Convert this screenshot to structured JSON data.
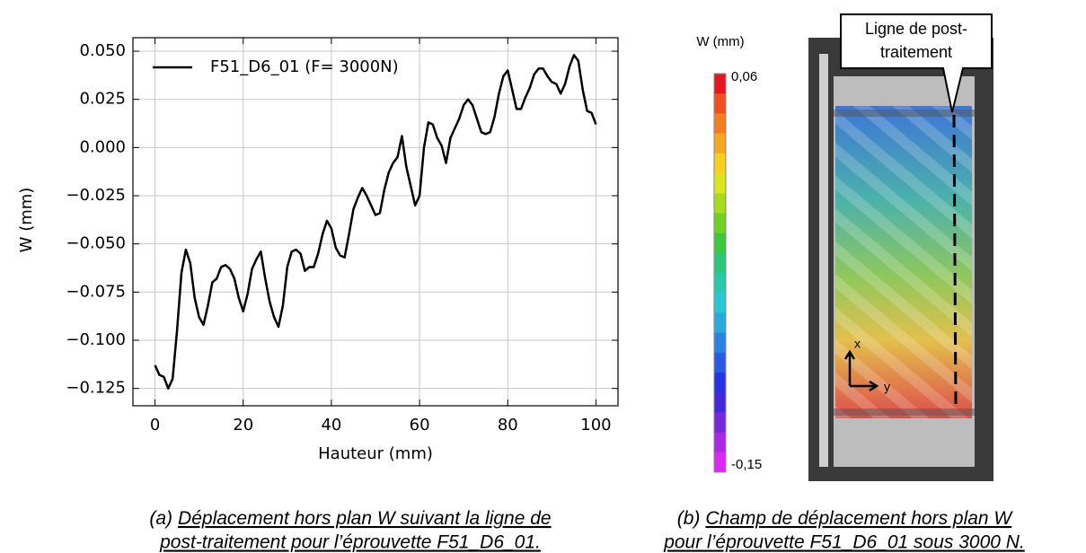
{
  "chart_data": {
    "type": "line",
    "y_label": "W (mm)",
    "x_label": "Hauteur (mm)",
    "x": [
      0,
      1,
      2,
      3,
      4,
      5,
      6,
      7,
      8,
      9,
      10,
      11,
      12,
      13,
      14,
      15,
      16,
      17,
      18,
      19,
      20,
      21,
      22,
      23,
      24,
      25,
      26,
      27,
      28,
      29,
      30,
      31,
      32,
      33,
      34,
      35,
      36,
      37,
      38,
      39,
      40,
      41,
      42,
      43,
      44,
      45,
      46,
      47,
      48,
      49,
      50,
      51,
      52,
      53,
      54,
      55,
      56,
      57,
      58,
      59,
      60,
      61,
      62,
      63,
      64,
      65,
      66,
      67,
      68,
      69,
      70,
      71,
      72,
      73,
      74,
      75,
      76,
      77,
      78,
      79,
      80,
      81,
      82,
      83,
      84,
      85,
      86,
      87,
      88,
      89,
      90,
      91,
      92,
      93,
      94,
      95,
      96,
      97,
      98,
      99,
      100
    ],
    "series": [
      {
        "name": "F51_D6_01 (F= 3000N)",
        "color": "#000000",
        "values": [
          -0.113,
          -0.118,
          -0.119,
          -0.125,
          -0.12,
          -0.095,
          -0.065,
          -0.053,
          -0.06,
          -0.078,
          -0.088,
          -0.092,
          -0.082,
          -0.07,
          -0.068,
          -0.062,
          -0.061,
          -0.063,
          -0.068,
          -0.078,
          -0.085,
          -0.076,
          -0.063,
          -0.058,
          -0.054,
          -0.068,
          -0.08,
          -0.088,
          -0.093,
          -0.082,
          -0.062,
          -0.054,
          -0.053,
          -0.055,
          -0.064,
          -0.062,
          -0.062,
          -0.055,
          -0.045,
          -0.038,
          -0.042,
          -0.052,
          -0.056,
          -0.057,
          -0.045,
          -0.032,
          -0.026,
          -0.021,
          -0.025,
          -0.03,
          -0.035,
          -0.034,
          -0.022,
          -0.013,
          -0.008,
          -0.005,
          0.006,
          -0.01,
          -0.02,
          -0.03,
          -0.025,
          0.0,
          0.013,
          0.012,
          0.005,
          0.001,
          -0.008,
          0.005,
          0.01,
          0.015,
          0.022,
          0.025,
          0.022,
          0.015,
          0.008,
          0.007,
          0.008,
          0.016,
          0.028,
          0.037,
          0.04,
          0.03,
          0.02,
          0.02,
          0.026,
          0.031,
          0.038,
          0.041,
          0.041,
          0.037,
          0.034,
          0.033,
          0.028,
          0.033,
          0.042,
          0.048,
          0.045,
          0.03,
          0.019,
          0.018,
          0.012
        ]
      }
    ],
    "xlim": [
      -5,
      105
    ],
    "xticks": [
      0,
      20,
      40,
      60,
      80,
      100
    ],
    "ylim": [
      -0.134,
      0.057
    ],
    "yticks": [
      {
        "value": 0.05,
        "label": "0.050"
      },
      {
        "value": 0.025,
        "label": "0.025"
      },
      {
        "value": 0,
        "label": "0.000"
      },
      {
        "value": -0.025,
        "label": "−0.025"
      },
      {
        "value": -0.05,
        "label": "−0.050"
      },
      {
        "value": -0.075,
        "label": "−0.075"
      },
      {
        "value": -0.1,
        "label": "−0.100"
      },
      {
        "value": -0.125,
        "label": "−0.125"
      }
    ],
    "grid": true,
    "legend": "upper left"
  },
  "field_image": {
    "colorbar_title": "W (mm)",
    "colorbar_max": "0,06",
    "colorbar_min": "-0,15",
    "callout": [
      "Ligne de post-",
      "traitement"
    ],
    "axis_x": "x",
    "axis_y": "y"
  },
  "captions": {
    "a": {
      "label": "(a)",
      "lines": [
        "Déplacement hors plan W suivant la ligne de",
        "post-traitement pour l’éprouvette F51_D6_01."
      ]
    },
    "b": {
      "label": "(b)",
      "lines": [
        "Champ de déplacement hors plan W",
        "pour l’éprouvette F51_D6_01 sous 3000 N."
      ]
    }
  }
}
